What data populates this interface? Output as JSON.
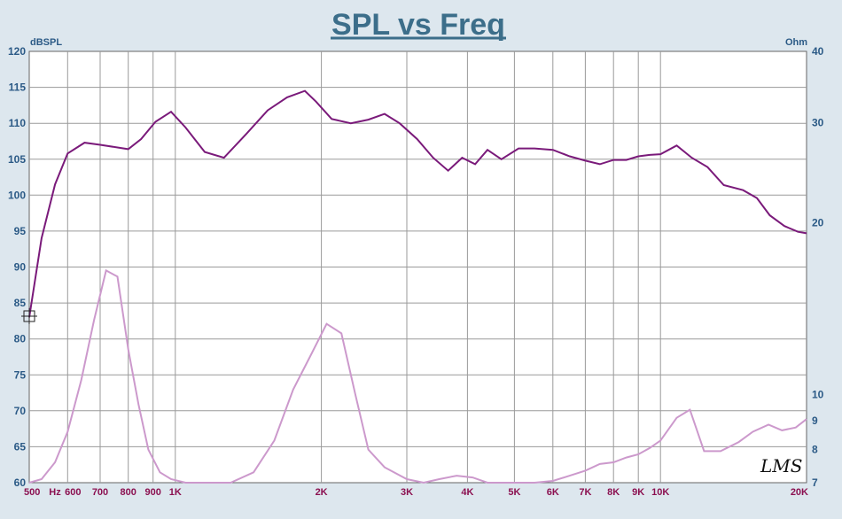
{
  "title": "SPL vs Freq",
  "left_unit": "dBSPL",
  "right_unit": "Ohm",
  "x_tick_unit": "Hz",
  "watermark": "LMS",
  "colors": {
    "background": "#dde7ee",
    "plot_background": "#ffffff",
    "grid": "#9a9a9a",
    "title": "#3c6e8a",
    "axis_text_left": "#2b5a86",
    "axis_text_x": "#8b1050",
    "spl_line": "#7a1a7a",
    "impedance_line": "#cc99cc"
  },
  "chart_data": {
    "type": "line",
    "title": "SPL vs Freq",
    "x_scale": "log",
    "xlim": [
      500,
      20000
    ],
    "y_left": {
      "label": "dBSPL",
      "range": [
        60,
        120
      ],
      "ticks": [
        60,
        65,
        70,
        75,
        80,
        85,
        90,
        95,
        100,
        105,
        110,
        115,
        120
      ]
    },
    "y_right": {
      "label": "Ohm",
      "range": [
        7,
        40
      ],
      "scale": "log",
      "ticks": [
        7,
        8,
        9,
        10,
        20,
        30,
        40
      ]
    },
    "x_ticks": [
      {
        "value": 500,
        "label": "500"
      },
      {
        "value": 600,
        "label": "600"
      },
      {
        "value": 700,
        "label": "700"
      },
      {
        "value": 800,
        "label": "800"
      },
      {
        "value": 900,
        "label": "900"
      },
      {
        "value": 1000,
        "label": "1K"
      },
      {
        "value": 2000,
        "label": "2K"
      },
      {
        "value": 3000,
        "label": "3K"
      },
      {
        "value": 4000,
        "label": "4K"
      },
      {
        "value": 5000,
        "label": "5K"
      },
      {
        "value": 6000,
        "label": "6K"
      },
      {
        "value": 7000,
        "label": "7K"
      },
      {
        "value": 8000,
        "label": "8K"
      },
      {
        "value": 9000,
        "label": "9K"
      },
      {
        "value": 10000,
        "label": "10K"
      },
      {
        "value": 20000,
        "label": "20K"
      }
    ],
    "grid": true,
    "series": [
      {
        "axis": "left",
        "color": "#7a1a7a",
        "x": [
          500,
          530,
          565,
          600,
          650,
          700,
          800,
          850,
          910,
          980,
          1050,
          1150,
          1260,
          1400,
          1550,
          1700,
          1850,
          1950,
          2100,
          2300,
          2500,
          2700,
          2900,
          3150,
          3400,
          3650,
          3900,
          4150,
          4400,
          4700,
          5100,
          5500,
          6000,
          6500,
          7000,
          7500,
          8000,
          8500,
          9000,
          9500,
          10000,
          10800,
          11600,
          12500,
          13500,
          14800,
          15800,
          16800,
          18000,
          19200,
          20000
        ],
        "y": [
          83,
          94,
          101.5,
          105.8,
          107.3,
          107.0,
          106.4,
          107.8,
          110.2,
          111.6,
          109.4,
          106.0,
          105.2,
          108.5,
          111.8,
          113.6,
          114.5,
          113.0,
          110.6,
          110.0,
          110.5,
          111.3,
          110.0,
          107.8,
          105.2,
          103.4,
          105.2,
          104.3,
          106.3,
          105.0,
          106.5,
          106.5,
          106.3,
          105.4,
          104.8,
          104.3,
          104.9,
          104.9,
          105.4,
          105.6,
          105.7,
          106.9,
          105.2,
          103.9,
          101.4,
          100.7,
          99.6,
          97.2,
          95.7,
          94.9,
          94.7
        ]
      },
      {
        "axis": "right",
        "color": "#cc99cc",
        "x": [
          500,
          530,
          565,
          600,
          640,
          680,
          720,
          760,
          800,
          840,
          880,
          930,
          980,
          1050,
          1150,
          1300,
          1450,
          1600,
          1750,
          1900,
          2050,
          2200,
          2350,
          2500,
          2700,
          3000,
          3250,
          3500,
          3800,
          4100,
          4400,
          4700,
          5100,
          5500,
          6000,
          6500,
          7000,
          7500,
          8000,
          8500,
          9000,
          9500,
          10000,
          10800,
          11500,
          12300,
          13300,
          14500,
          15500,
          16700,
          17800,
          19000,
          20000
        ],
        "y": [
          7.0,
          7.1,
          7.6,
          8.6,
          10.6,
          13.5,
          16.5,
          16.1,
          12.0,
          9.6,
          8.0,
          7.3,
          7.1,
          7.0,
          6.9,
          6.8,
          7.3,
          8.3,
          10.2,
          11.7,
          13.3,
          12.8,
          10.0,
          8.0,
          7.45,
          7.1,
          7.0,
          7.1,
          7.2,
          7.15,
          6.95,
          6.8,
          6.9,
          7.0,
          7.05,
          7.2,
          7.35,
          7.55,
          7.6,
          7.75,
          7.85,
          8.05,
          8.3,
          9.1,
          9.4,
          7.95,
          7.95,
          8.25,
          8.6,
          8.85,
          8.65,
          8.75,
          9.05
        ]
      }
    ]
  }
}
